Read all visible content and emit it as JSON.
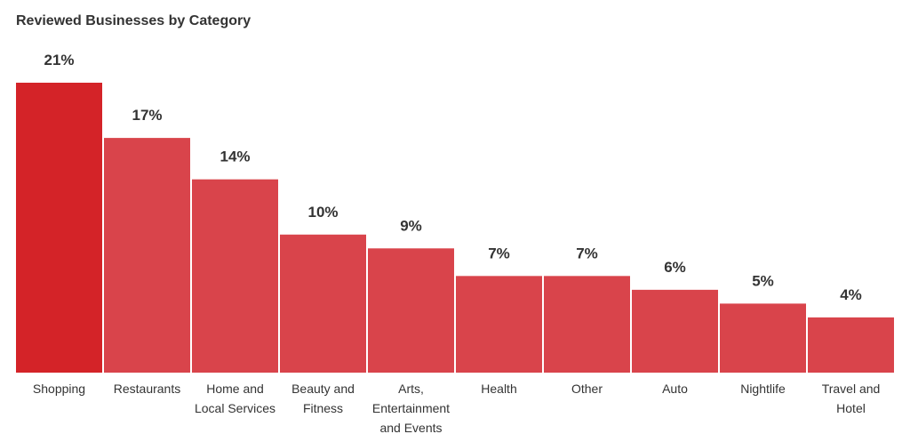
{
  "chart_data": {
    "type": "bar",
    "title": "Reviewed Businesses by Category",
    "categories": [
      "Shopping",
      "Restaurants",
      "Home and Local Services",
      "Beauty and Fitness",
      "Arts, Entertainment and Events",
      "Health",
      "Other",
      "Auto",
      "Nightlife",
      "Travel and Hotel"
    ],
    "category_lines": [
      [
        "Shopping"
      ],
      [
        "Restaurants"
      ],
      [
        "Home and",
        "Local Services"
      ],
      [
        "Beauty and",
        "Fitness"
      ],
      [
        "Arts,",
        "Entertainment",
        "and Events"
      ],
      [
        "Health"
      ],
      [
        "Other"
      ],
      [
        "Auto"
      ],
      [
        "Nightlife"
      ],
      [
        "Travel and",
        "Hotel"
      ]
    ],
    "values": [
      21,
      17,
      14,
      10,
      9,
      7,
      7,
      6,
      5,
      4
    ],
    "data_labels": [
      "21%",
      "17%",
      "14%",
      "10%",
      "9%",
      "7%",
      "7%",
      "6%",
      "5%",
      "4%"
    ],
    "unit": "%",
    "ylim": [
      0,
      21
    ],
    "grid": false,
    "highlight_index": 0,
    "colors": {
      "highlight": "#d42328",
      "bar": "#d9444b",
      "text": "#333333"
    }
  }
}
